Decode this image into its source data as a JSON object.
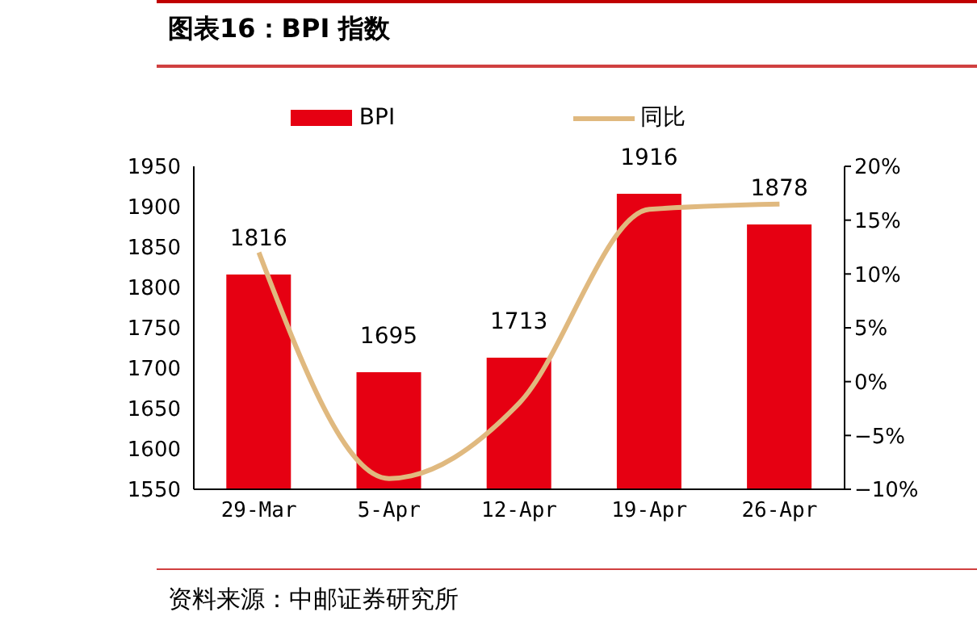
{
  "chart_data": {
    "type": "bar",
    "title": "图表16：BPI 指数",
    "categories": [
      "29-Mar",
      "5-Apr",
      "12-Apr",
      "19-Apr",
      "26-Apr"
    ],
    "series": [
      {
        "name": "BPI",
        "color": "#e60012",
        "values": [
          1816,
          1695,
          1713,
          1916,
          1878
        ],
        "value_labels": [
          "1816",
          "1695",
          "1713",
          "1916",
          "1878"
        ]
      },
      {
        "name": "同比",
        "type": "line",
        "axis": "y2",
        "color": "#e0b97f",
        "values": [
          12,
          -9,
          -2,
          16,
          16.5
        ]
      }
    ],
    "ylim": [
      1550,
      1950
    ],
    "yticks": [
      1550,
      1600,
      1650,
      1700,
      1750,
      1800,
      1850,
      1900,
      1950
    ],
    "y2lim": [
      -10,
      20
    ],
    "y2ticks": [
      {
        "value": -10,
        "label": "−10%"
      },
      {
        "value": -5,
        "label": "−5%"
      },
      {
        "value": 0,
        "label": "0%"
      },
      {
        "value": 5,
        "label": "5%"
      },
      {
        "value": 10,
        "label": "10%"
      },
      {
        "value": 15,
        "label": "15%"
      },
      {
        "value": 20,
        "label": "20%"
      }
    ],
    "grid": false,
    "legend": "top",
    "marker": "none",
    "annotations": [
      "资料来源：中邮证券研究所"
    ]
  }
}
